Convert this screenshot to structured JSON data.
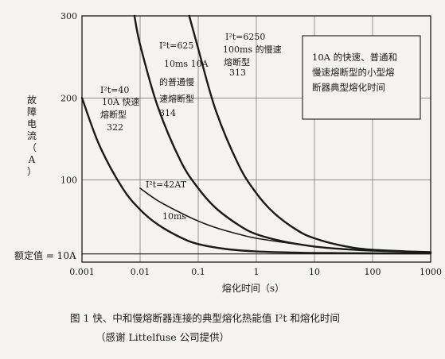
{
  "chart_data": {
    "type": "line",
    "xscale": "log",
    "xlim": [
      0.001,
      1000
    ],
    "ylim": [
      0,
      300
    ],
    "x_ticks": [
      "0.001",
      "0.01",
      "0.1",
      "1",
      "10",
      "100",
      "1000"
    ],
    "y_ticks": [
      "100",
      "200",
      "300"
    ],
    "xlabel": "熔化时间（s）",
    "ylabel": "故障电流（A）",
    "rated_label": "额定值 = 10A",
    "rated_value": 10,
    "box_text": [
      "10A 的快速、普通和",
      "慢速熔断型的小型熔",
      "断器典型熔化时间"
    ],
    "series": [
      {
        "labels": [
          "I²t=40",
          "10A 快速",
          "熔断型",
          "322"
        ],
        "x": [
          0.001,
          0.002,
          0.005,
          0.01,
          0.02,
          0.05,
          0.1,
          0.3,
          1,
          5,
          20,
          100,
          1000
        ],
        "y": [
          200,
          142,
          90,
          64,
          46,
          30,
          22,
          16,
          13,
          11.5,
          11,
          10.7,
          10.5
        ]
      },
      {
        "labels": [
          "I²t=42AT",
          "10ms"
        ],
        "x": [
          0.01,
          0.02,
          0.05,
          0.1,
          0.2,
          0.5,
          1,
          3,
          10,
          30,
          100,
          1000
        ],
        "y": [
          90,
          75,
          60,
          50,
          42,
          34,
          29,
          24,
          19,
          16,
          14,
          12
        ]
      },
      {
        "labels": [
          "I²t=625",
          "10ms 10A",
          "的普通慢",
          "速熔断型",
          "314"
        ],
        "x": [
          0.008,
          0.01,
          0.02,
          0.05,
          0.1,
          0.2,
          0.5,
          1,
          3,
          10,
          30,
          100,
          1000
        ],
        "y": [
          300,
          265,
          190,
          123,
          90,
          66,
          45,
          34,
          25,
          19,
          16,
          14,
          12
        ]
      },
      {
        "labels": [
          "I²t=6250",
          "100ms 的慢速",
          "熔断型",
          "313"
        ],
        "x": [
          0.07,
          0.1,
          0.2,
          0.5,
          1,
          2,
          5,
          10,
          30,
          100,
          1000
        ],
        "y": [
          300,
          260,
          185,
          118,
          84,
          60,
          39,
          29,
          20,
          15,
          12
        ]
      }
    ]
  },
  "caption": {
    "line1": "图 1  快、中和慢熔断器连接的典型熔化热能值 I²t 和熔化时间",
    "line2": "（感谢 Littelfuse 公司提供）"
  }
}
